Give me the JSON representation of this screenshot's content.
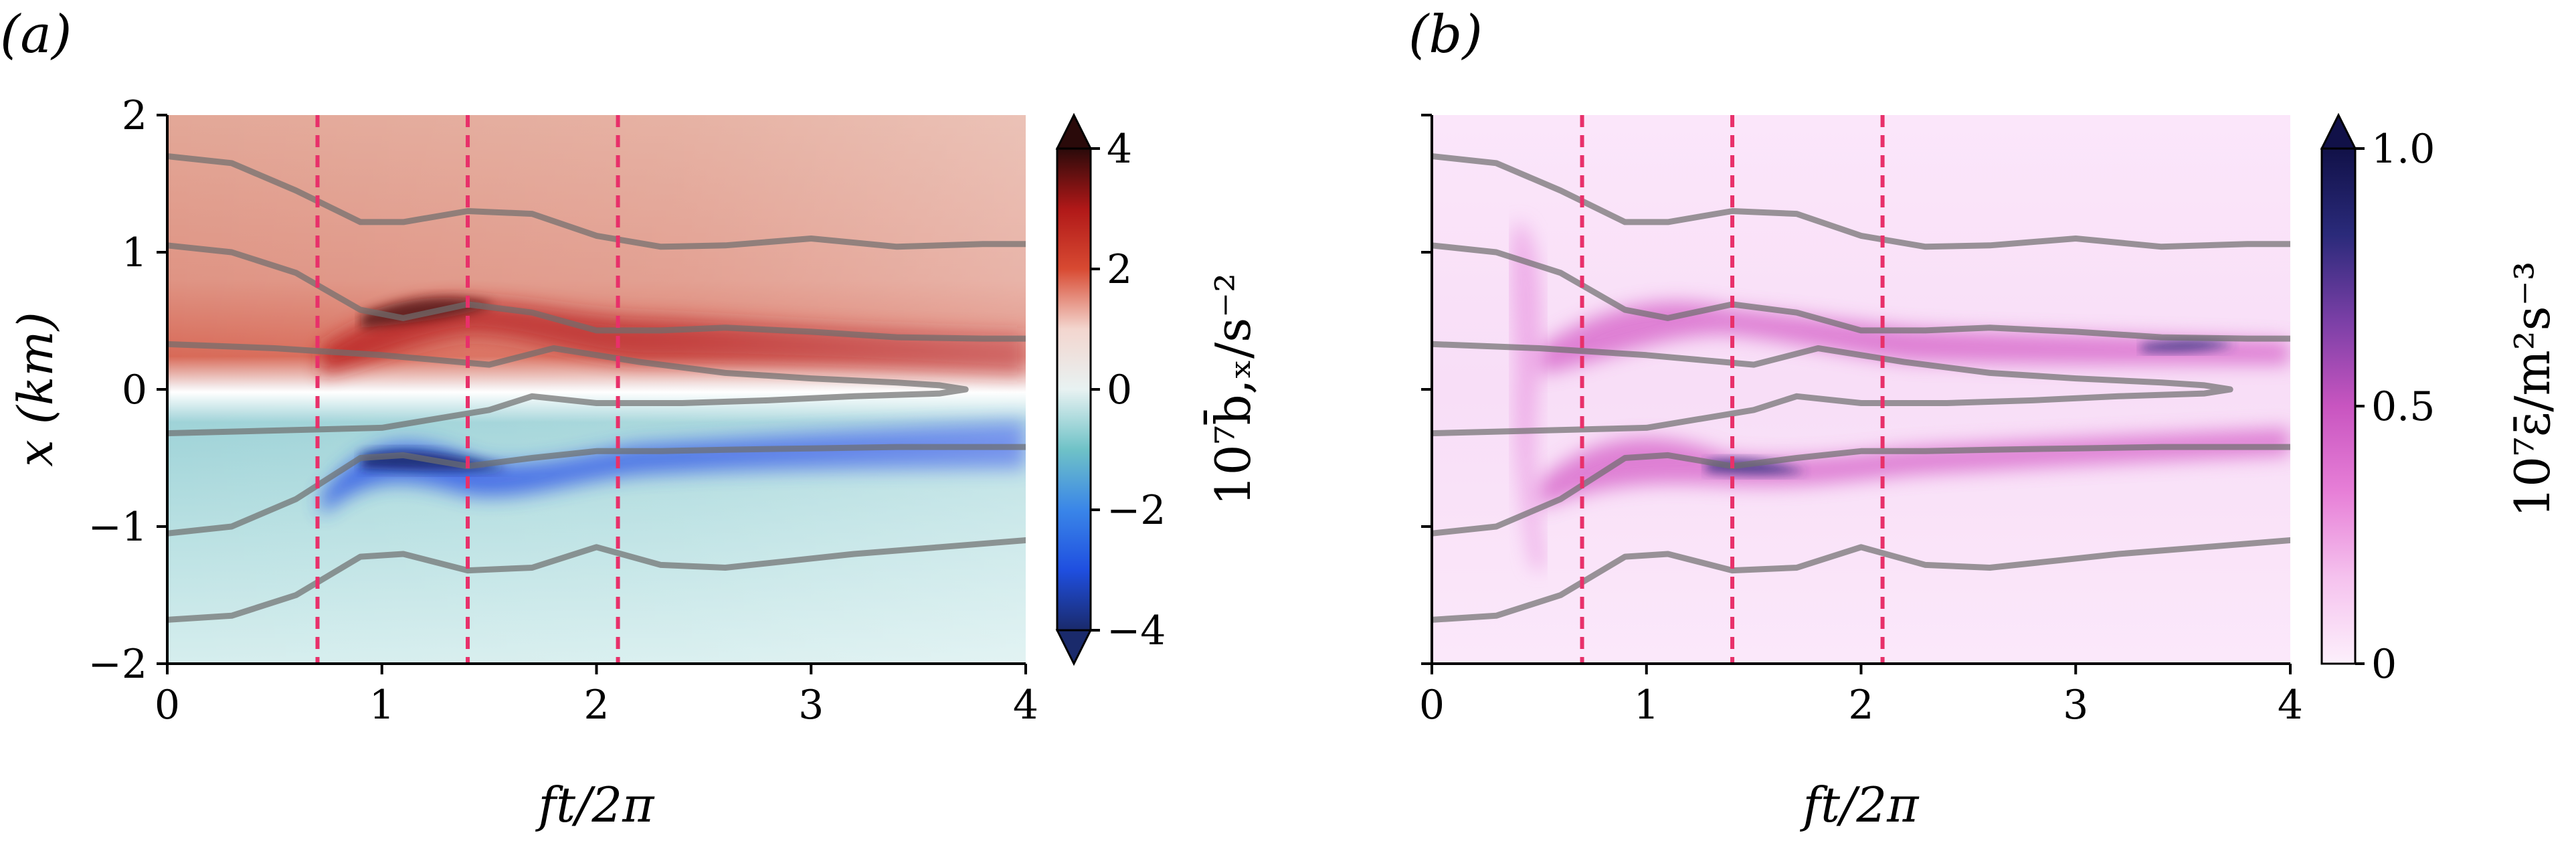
{
  "chart_data": [
    {
      "type": "heatmap",
      "panel_label": "(a)",
      "xlabel": "ft/2π",
      "ylabel": "x (km)",
      "xlim": [
        0,
        4
      ],
      "ylim": [
        -2,
        2
      ],
      "xticks": [
        0,
        1,
        2,
        3,
        4
      ],
      "yticks": [
        -2,
        -1,
        0,
        1,
        2
      ],
      "vlines": [
        0.7,
        1.4,
        2.1
      ],
      "vline_color": "#e8306a",
      "colorbar": {
        "label": "10⁷b̄,ₓ/s⁻²",
        "range": [
          -4,
          4
        ],
        "ticks": [
          -4,
          -2,
          0,
          2,
          4
        ],
        "tick_labels": [
          "−4",
          "−2",
          "0",
          "2",
          "4"
        ],
        "colormap": [
          "#1a2a6b",
          "#1f4fe0",
          "#3a86e8",
          "#6fc2c7",
          "#e8f2f2",
          "#f3d6cf",
          "#d84a32",
          "#b01818",
          "#2a0a0a"
        ],
        "extend": "both"
      },
      "contours": [
        {
          "x": [
            0,
            0.3,
            0.6,
            0.9,
            1.1,
            1.4,
            1.7,
            2.0,
            2.3,
            2.6,
            3.0,
            3.4,
            3.8,
            4.0
          ],
          "y": [
            1.7,
            1.65,
            1.45,
            1.22,
            1.22,
            1.3,
            1.28,
            1.12,
            1.04,
            1.05,
            1.1,
            1.04,
            1.06,
            1.06
          ]
        },
        {
          "x": [
            0,
            0.3,
            0.6,
            0.9,
            1.1,
            1.4,
            1.7,
            2.0,
            2.3,
            2.6,
            3.0,
            3.4,
            3.8,
            4.0
          ],
          "y": [
            1.05,
            1.0,
            0.85,
            0.58,
            0.52,
            0.62,
            0.56,
            0.43,
            0.43,
            0.45,
            0.42,
            0.38,
            0.37,
            0.37
          ]
        },
        {
          "x": [
            0,
            0.5,
            1.0,
            1.5,
            1.8,
            2.2,
            2.6,
            3.0,
            3.4,
            3.6,
            3.72,
            3.6,
            3.2,
            2.8,
            2.4,
            2.0,
            1.7,
            1.5,
            1.0,
            0.5,
            0
          ],
          "y": [
            0.33,
            0.3,
            0.25,
            0.18,
            0.3,
            0.2,
            0.12,
            0.08,
            0.05,
            0.03,
            0.0,
            -0.03,
            -0.05,
            -0.08,
            -0.1,
            -0.1,
            -0.05,
            -0.15,
            -0.28,
            -0.3,
            -0.32
          ]
        },
        {
          "x": [
            0,
            0.3,
            0.6,
            0.9,
            1.1,
            1.4,
            1.7,
            2.0,
            2.3,
            2.6,
            3.0,
            3.4,
            3.8,
            4.0
          ],
          "y": [
            -1.05,
            -1.0,
            -0.8,
            -0.5,
            -0.48,
            -0.56,
            -0.5,
            -0.45,
            -0.45,
            -0.44,
            -0.43,
            -0.42,
            -0.42,
            -0.42
          ]
        },
        {
          "x": [
            0,
            0.3,
            0.6,
            0.9,
            1.1,
            1.4,
            1.7,
            2.0,
            2.3,
            2.6,
            2.9,
            3.2,
            3.6,
            4.0
          ],
          "y": [
            -1.68,
            -1.65,
            -1.5,
            -1.22,
            -1.2,
            -1.32,
            -1.3,
            -1.15,
            -1.28,
            -1.3,
            -1.25,
            -1.2,
            -1.15,
            -1.1
          ]
        }
      ]
    },
    {
      "type": "heatmap",
      "panel_label": "(b)",
      "xlabel": "ft/2π",
      "ylabel": "",
      "xlim": [
        0,
        4
      ],
      "ylim": [
        -2,
        2
      ],
      "xticks": [
        0,
        1,
        2,
        3,
        4
      ],
      "yticks": [
        -2,
        -1,
        0,
        1,
        2
      ],
      "vlines": [
        0.7,
        1.4,
        2.1
      ],
      "vline_color": "#e8306a",
      "colorbar": {
        "label": "10⁷ε̄/m²s⁻³",
        "range": [
          0,
          1.0
        ],
        "ticks": [
          0,
          0.5,
          1.0
        ],
        "tick_labels": [
          "0",
          "0.5",
          "1.0"
        ],
        "colormap": [
          "#fdf0fc",
          "#f5c2ee",
          "#e77fd7",
          "#c855c0",
          "#7a3fa6",
          "#2a2a7a",
          "#111148"
        ],
        "extend": "max"
      },
      "contours": [
        {
          "x": [
            0,
            0.3,
            0.6,
            0.9,
            1.1,
            1.4,
            1.7,
            2.0,
            2.3,
            2.6,
            3.0,
            3.4,
            3.8,
            4.0
          ],
          "y": [
            1.7,
            1.65,
            1.45,
            1.22,
            1.22,
            1.3,
            1.28,
            1.12,
            1.04,
            1.05,
            1.1,
            1.04,
            1.06,
            1.06
          ]
        },
        {
          "x": [
            0,
            0.3,
            0.6,
            0.9,
            1.1,
            1.4,
            1.7,
            2.0,
            2.3,
            2.6,
            3.0,
            3.4,
            3.8,
            4.0
          ],
          "y": [
            1.05,
            1.0,
            0.85,
            0.58,
            0.52,
            0.62,
            0.56,
            0.43,
            0.43,
            0.45,
            0.42,
            0.38,
            0.37,
            0.37
          ]
        },
        {
          "x": [
            0,
            0.5,
            1.0,
            1.5,
            1.8,
            2.2,
            2.6,
            3.0,
            3.4,
            3.6,
            3.72,
            3.6,
            3.2,
            2.8,
            2.4,
            2.0,
            1.7,
            1.5,
            1.0,
            0.5,
            0
          ],
          "y": [
            0.33,
            0.3,
            0.25,
            0.18,
            0.3,
            0.2,
            0.12,
            0.08,
            0.05,
            0.03,
            0.0,
            -0.03,
            -0.05,
            -0.08,
            -0.1,
            -0.1,
            -0.05,
            -0.15,
            -0.28,
            -0.3,
            -0.32
          ]
        },
        {
          "x": [
            0,
            0.3,
            0.6,
            0.9,
            1.1,
            1.4,
            1.7,
            2.0,
            2.3,
            2.6,
            3.0,
            3.4,
            3.8,
            4.0
          ],
          "y": [
            -1.05,
            -1.0,
            -0.8,
            -0.5,
            -0.48,
            -0.56,
            -0.5,
            -0.45,
            -0.45,
            -0.44,
            -0.43,
            -0.42,
            -0.42,
            -0.42
          ]
        },
        {
          "x": [
            0,
            0.3,
            0.6,
            0.9,
            1.1,
            1.4,
            1.7,
            2.0,
            2.3,
            2.6,
            2.9,
            3.2,
            3.6,
            4.0
          ],
          "y": [
            -1.68,
            -1.65,
            -1.5,
            -1.22,
            -1.2,
            -1.32,
            -1.3,
            -1.15,
            -1.28,
            -1.3,
            -1.25,
            -1.2,
            -1.15,
            -1.1
          ]
        }
      ]
    }
  ]
}
